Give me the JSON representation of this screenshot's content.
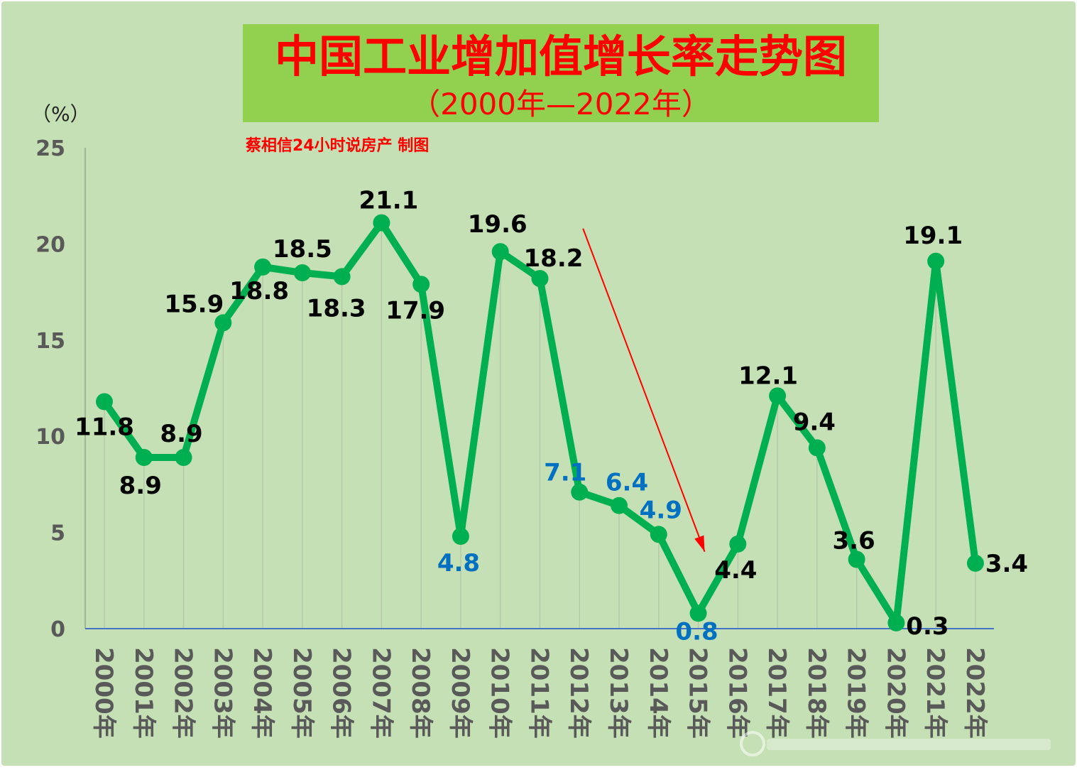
{
  "title": "中国工业增加值增长率走势图",
  "subtitle": "（2000年—2022年）",
  "credit": "蔡相信24小时说房产 制图",
  "unit_label": "（%）",
  "colors": {
    "background": "#c5e0b4",
    "title_box": "#92d050",
    "line": "#00b050",
    "title_text": "#ff0000",
    "label_dark": "#000000",
    "label_blue": "#0070c0",
    "arrow": "#ff0000",
    "gridline": "#b7c7ad",
    "axis": "#4472c4"
  },
  "chart_data": {
    "type": "line",
    "title": "中国工业增加值增长率走势图",
    "subtitle": "（2000年—2022年）",
    "ylabel": "（%）",
    "xlabel": "",
    "ylim": [
      0,
      25
    ],
    "yticks": [
      0,
      5,
      10,
      15,
      20,
      25
    ],
    "grid": "vertical",
    "categories": [
      "2000年",
      "2001年",
      "2002年",
      "2003年",
      "2004年",
      "2005年",
      "2006年",
      "2007年",
      "2008年",
      "2009年",
      "2010年",
      "2011年",
      "2012年",
      "2013年",
      "2014年",
      "2015年",
      "2016年",
      "2017年",
      "2018年",
      "2019年",
      "2020年",
      "2021年",
      "2022年"
    ],
    "values": [
      11.8,
      8.9,
      8.9,
      15.9,
      18.8,
      18.5,
      18.3,
      21.1,
      17.9,
      4.8,
      19.6,
      18.2,
      7.1,
      6.4,
      4.9,
      0.8,
      4.4,
      12.1,
      9.4,
      3.6,
      0.3,
      19.1,
      3.4
    ],
    "data_labels": [
      "11.8",
      "8.9",
      "8.9",
      "15.9",
      "18.8",
      "18.5",
      "18.3",
      "21.1",
      "17.9",
      "4.8",
      "19.6",
      "18.2",
      "7.1",
      "6.4",
      "4.9",
      "0.8",
      "4.4",
      "12.1",
      "9.4",
      "3.6",
      "0.3",
      "19.1",
      "3.4"
    ],
    "highlighted_labels": [
      9,
      12,
      13,
      14,
      15
    ],
    "annotation": "red arrow pointing down from 2012 to 2015"
  }
}
